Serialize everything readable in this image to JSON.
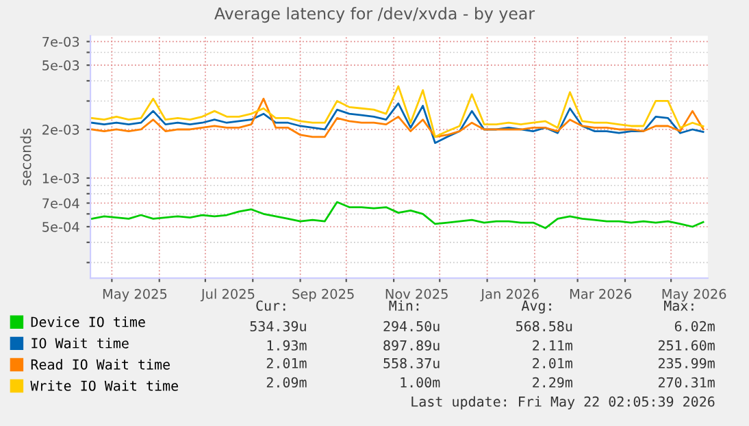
{
  "chart_data": {
    "type": "line",
    "title": "Average latency for /dev/xvda - by year",
    "ylabel": "seconds",
    "log": "y",
    "x": [
      "2025-04-18",
      "2025-04-26",
      "2025-05-04",
      "2025-05-12",
      "2025-05-20",
      "2025-05-28",
      "2025-06-05",
      "2025-06-13",
      "2025-06-21",
      "2025-06-29",
      "2025-07-07",
      "2025-07-15",
      "2025-07-23",
      "2025-07-31",
      "2025-08-08",
      "2025-08-16",
      "2025-08-24",
      "2025-09-01",
      "2025-09-09",
      "2025-09-17",
      "2025-09-25",
      "2025-10-03",
      "2025-10-11",
      "2025-10-19",
      "2025-10-27",
      "2025-11-04",
      "2025-11-12",
      "2025-11-20",
      "2025-11-28",
      "2025-12-06",
      "2025-12-14",
      "2025-12-22",
      "2025-12-30",
      "2026-01-07",
      "2026-01-15",
      "2026-01-23",
      "2026-01-31",
      "2026-02-08",
      "2026-02-16",
      "2026-02-24",
      "2026-03-04",
      "2026-03-12",
      "2026-03-20",
      "2026-03-28",
      "2026-04-05",
      "2026-04-13",
      "2026-04-21",
      "2026-04-29",
      "2026-05-07",
      "2026-05-15",
      "2026-05-22"
    ],
    "series": [
      {
        "name": "Device IO time",
        "color": "#00cc00",
        "values": [
          0.00056,
          0.00058,
          0.00057,
          0.00056,
          0.00059,
          0.00056,
          0.00057,
          0.00058,
          0.00057,
          0.00059,
          0.00058,
          0.00059,
          0.00062,
          0.00064,
          0.0006,
          0.00058,
          0.00056,
          0.00054,
          0.00055,
          0.00054,
          0.00071,
          0.00066,
          0.00066,
          0.00065,
          0.00066,
          0.00061,
          0.00063,
          0.0006,
          0.00052,
          0.00053,
          0.00054,
          0.00055,
          0.00053,
          0.00054,
          0.00054,
          0.00053,
          0.00053,
          0.00049,
          0.00056,
          0.00058,
          0.00056,
          0.00055,
          0.00054,
          0.00054,
          0.00053,
          0.00054,
          0.00053,
          0.00054,
          0.00052,
          0.0005,
          0.000534
        ]
      },
      {
        "name": "IO Wait time",
        "color": "#0066b3",
        "values": [
          0.0022,
          0.00215,
          0.0022,
          0.00215,
          0.0022,
          0.0026,
          0.00215,
          0.0022,
          0.00215,
          0.0022,
          0.0023,
          0.0022,
          0.00225,
          0.0023,
          0.0025,
          0.0022,
          0.0022,
          0.0021,
          0.00205,
          0.002,
          0.00265,
          0.0025,
          0.00245,
          0.0024,
          0.0023,
          0.0029,
          0.00205,
          0.0028,
          0.00165,
          0.0018,
          0.00195,
          0.0026,
          0.002,
          0.002,
          0.00205,
          0.002,
          0.00195,
          0.00205,
          0.0019,
          0.0027,
          0.0021,
          0.00195,
          0.00195,
          0.0019,
          0.00195,
          0.00195,
          0.0024,
          0.00235,
          0.0019,
          0.002,
          0.00193
        ]
      },
      {
        "name": "Read IO Wait time",
        "color": "#ff8000",
        "values": [
          0.002,
          0.00195,
          0.002,
          0.00195,
          0.002,
          0.0023,
          0.00195,
          0.002,
          0.002,
          0.00205,
          0.0021,
          0.00205,
          0.00205,
          0.00215,
          0.0031,
          0.00205,
          0.00205,
          0.00185,
          0.0018,
          0.0018,
          0.00235,
          0.00225,
          0.0022,
          0.0022,
          0.00215,
          0.0024,
          0.00195,
          0.0023,
          0.0018,
          0.00185,
          0.00195,
          0.0022,
          0.002,
          0.002,
          0.002,
          0.002,
          0.00205,
          0.00205,
          0.00195,
          0.0023,
          0.0021,
          0.00205,
          0.00205,
          0.002,
          0.002,
          0.00195,
          0.0021,
          0.0021,
          0.00195,
          0.0026,
          0.00201
        ]
      },
      {
        "name": "Write IO Wait time",
        "color": "#ffcc00",
        "values": [
          0.00235,
          0.0023,
          0.0024,
          0.0023,
          0.00235,
          0.0031,
          0.0023,
          0.00235,
          0.0023,
          0.0024,
          0.0026,
          0.0024,
          0.0024,
          0.0025,
          0.0027,
          0.00235,
          0.00235,
          0.00225,
          0.0022,
          0.0022,
          0.003,
          0.00275,
          0.0027,
          0.00265,
          0.0025,
          0.0037,
          0.0022,
          0.0035,
          0.0018,
          0.00195,
          0.0021,
          0.0033,
          0.00215,
          0.00215,
          0.0022,
          0.00215,
          0.0022,
          0.00225,
          0.00205,
          0.0034,
          0.00225,
          0.0022,
          0.0022,
          0.00215,
          0.0021,
          0.0021,
          0.003,
          0.003,
          0.00205,
          0.0022,
          0.00209
        ]
      }
    ],
    "xlim": [
      "2025-04-17",
      "2026-05-25"
    ],
    "xticks": [
      {
        "value": "2025-05-01",
        "label": null
      },
      {
        "value": "2025-06-01",
        "label": null
      },
      {
        "value": "2025-07-01",
        "label": null
      },
      {
        "value": "2025-08-01",
        "label": null
      },
      {
        "value": "2025-09-01",
        "label": null
      },
      {
        "value": "2025-10-01",
        "label": null
      },
      {
        "value": "2025-11-01",
        "label": null
      },
      {
        "value": "2025-12-01",
        "label": null
      },
      {
        "value": "2026-01-01",
        "label": null
      },
      {
        "value": "2026-02-01",
        "label": null
      },
      {
        "value": "2026-03-01",
        "label": null
      },
      {
        "value": "2026-04-01",
        "label": null
      },
      {
        "value": "2026-05-01",
        "label": null
      },
      {
        "value": "2025-05-16",
        "label": "May 2025"
      },
      {
        "value": "2025-07-16",
        "label": "Jul 2025"
      },
      {
        "value": "2025-09-16",
        "label": "Sep 2025"
      },
      {
        "value": "2025-11-16",
        "label": "Nov 2025"
      },
      {
        "value": "2026-01-16",
        "label": "Jan 2026"
      },
      {
        "value": "2026-03-16",
        "label": "Mar 2026"
      },
      {
        "value": "2026-05-16",
        "label": "May 2026"
      }
    ],
    "ylim": [
      0.00024,
      0.0076
    ],
    "yticks": [
      {
        "value": 0.0003,
        "label": null
      },
      {
        "value": 0.0004,
        "label": null
      },
      {
        "value": 0.0005,
        "label": "5e-04"
      },
      {
        "value": 0.0006,
        "label": null
      },
      {
        "value": 0.0007,
        "label": "7e-04"
      },
      {
        "value": 0.0008,
        "label": null
      },
      {
        "value": 0.0009,
        "label": null
      },
      {
        "value": 0.001,
        "label": "1e-03"
      },
      {
        "value": 0.002,
        "label": "2e-03"
      },
      {
        "value": 0.003,
        "label": null
      },
      {
        "value": 0.004,
        "label": null
      },
      {
        "value": 0.005,
        "label": "5e-03"
      },
      {
        "value": 0.006,
        "label": null
      },
      {
        "value": 0.007,
        "label": "7e-03"
      }
    ],
    "grid": true,
    "legend": "bottom",
    "marker": "none",
    "line_style": "solid",
    "annotations": [
      "Cur:",
      "Min:",
      "Avg:",
      "Max:",
      "534.39u",
      "294.50u",
      "568.58u",
      "6.02m",
      "1.93m",
      "897.89u",
      "2.11m",
      "251.60m",
      "2.01m",
      "558.37u",
      "2.01m",
      "235.99m",
      "2.09m",
      "1.00m",
      "2.29m",
      "270.31m",
      "Last update: Fri May 22 02:05:39 2026"
    ]
  }
}
